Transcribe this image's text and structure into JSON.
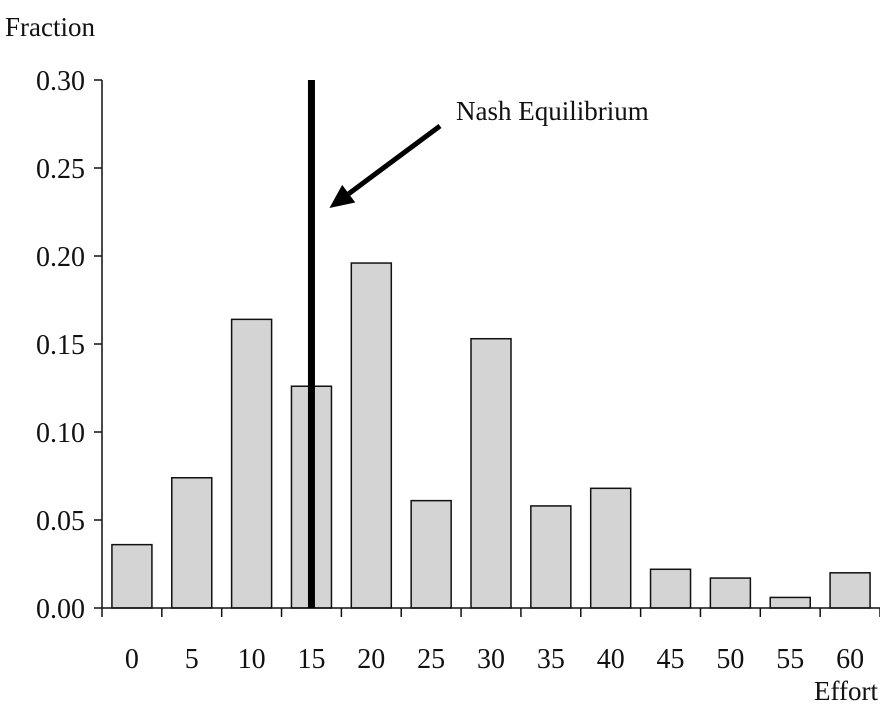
{
  "chart_data": {
    "type": "bar",
    "ylabel": "Fraction",
    "xlabel": "Effort",
    "categories": [
      "0",
      "5",
      "10",
      "15",
      "20",
      "25",
      "30",
      "35",
      "40",
      "45",
      "50",
      "55",
      "60"
    ],
    "values": [
      0.036,
      0.074,
      0.164,
      0.126,
      0.196,
      0.061,
      0.153,
      0.058,
      0.068,
      0.022,
      0.017,
      0.006,
      0.02
    ],
    "y_ticks": [
      "0.00",
      "0.05",
      "0.10",
      "0.15",
      "0.20",
      "0.25",
      "0.30"
    ],
    "ylim": [
      0,
      0.3
    ],
    "grid": false,
    "reference_line": {
      "x": 15,
      "label": "Nash Equilibrium"
    },
    "colors": {
      "bar_fill": "#d4d4d4",
      "bar_stroke": "#111111",
      "axis": "#111111",
      "reference_line": "#000000"
    }
  }
}
